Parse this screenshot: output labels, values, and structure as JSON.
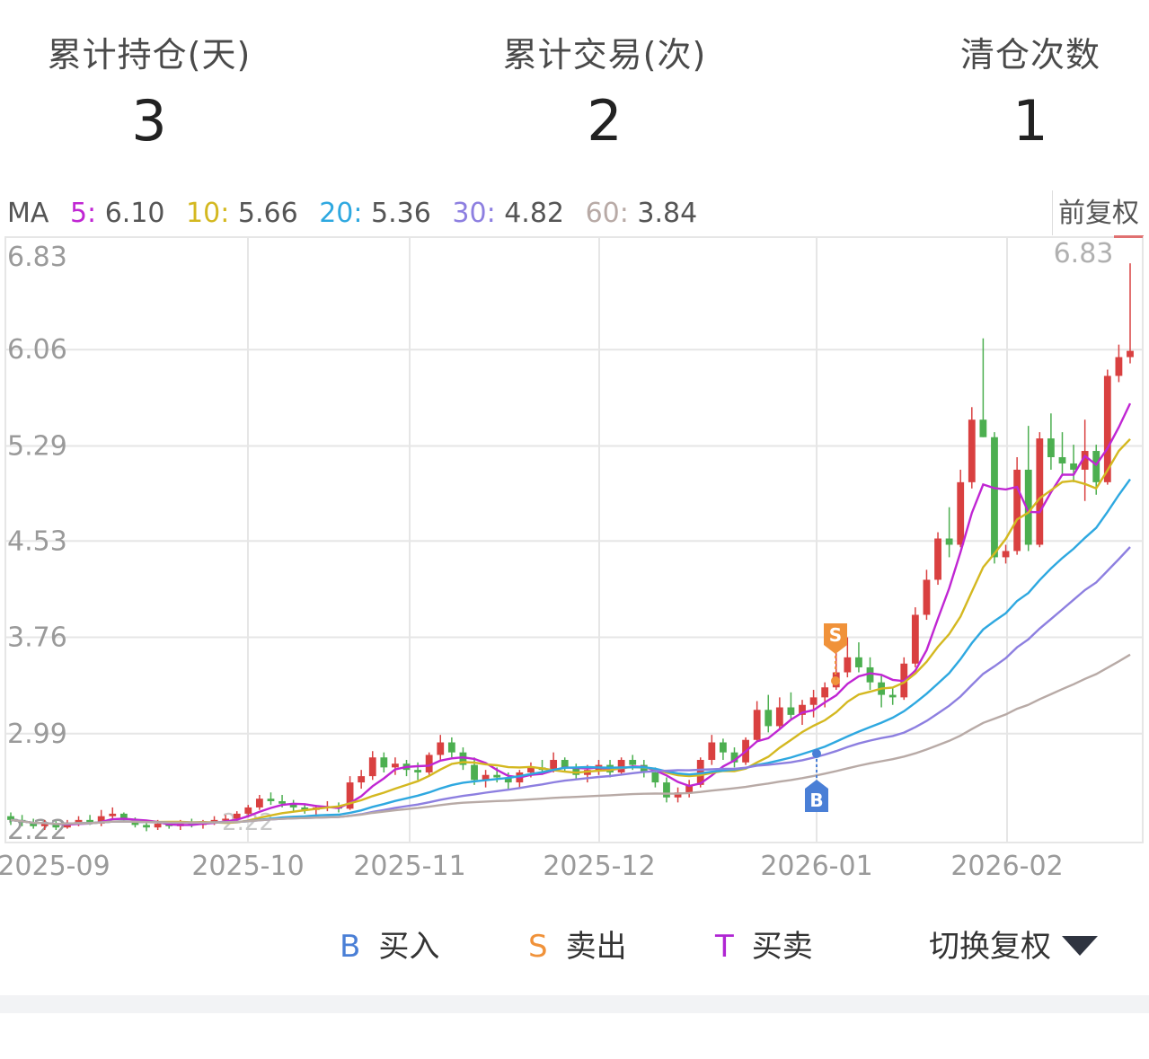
{
  "stats": [
    {
      "label": "累计持仓(天)",
      "value": "3"
    },
    {
      "label": "累计交易(次)",
      "value": "2"
    },
    {
      "label": "清仓次数",
      "value": "1"
    }
  ],
  "ma_bar": {
    "prefix": "MA",
    "items": [
      {
        "key": "5:",
        "value": "6.10",
        "color": "#c026d3"
      },
      {
        "key": "10:",
        "value": "5.66",
        "color": "#d4b820"
      },
      {
        "key": "20:",
        "value": "5.36",
        "color": "#2ea8e0"
      },
      {
        "key": "30:",
        "value": "4.82",
        "color": "#8d7fe0"
      },
      {
        "key": "60:",
        "value": "3.84",
        "color": "#b8aaa6"
      }
    ],
    "adjust_label": "前复权"
  },
  "chart_data": {
    "type": "candlestick",
    "y_ticks": [
      "6.83",
      "6.06",
      "5.29",
      "4.53",
      "3.76",
      "2.99",
      "2.22"
    ],
    "y_range": [
      2.22,
      6.83
    ],
    "x_ticks": [
      "2025-09",
      "2025-10",
      "2025-11",
      "2025-12",
      "2026-01",
      "2026-02"
    ],
    "max_label": "6.83",
    "min_label": "2.22",
    "colors": {
      "up": "#d94040",
      "down": "#4caf50",
      "grid": "#e6e6e6",
      "axis_text": "#9a9a9a"
    },
    "markers": [
      {
        "type": "S",
        "label": "S",
        "color": "#f0923a",
        "date": "2026-01-02"
      },
      {
        "type": "B",
        "label": "B",
        "color": "#4a7fd6",
        "date": "2025-12-31"
      }
    ],
    "ma_series": [
      {
        "name": "MA5",
        "color": "#c026d3"
      },
      {
        "name": "MA10",
        "color": "#d4b820"
      },
      {
        "name": "MA20",
        "color": "#2ea8e0"
      },
      {
        "name": "MA30",
        "color": "#8d7fe0"
      },
      {
        "name": "MA60",
        "color": "#b8aaa6"
      }
    ],
    "candles_ohlc": [
      [
        2.33,
        2.36,
        2.26,
        2.3
      ],
      [
        2.3,
        2.34,
        2.25,
        2.28
      ],
      [
        2.28,
        2.31,
        2.23,
        2.25
      ],
      [
        2.25,
        2.3,
        2.22,
        2.27
      ],
      [
        2.27,
        2.29,
        2.22,
        2.24
      ],
      [
        2.24,
        2.3,
        2.23,
        2.28
      ],
      [
        2.28,
        2.33,
        2.25,
        2.3
      ],
      [
        2.3,
        2.34,
        2.26,
        2.27
      ],
      [
        2.27,
        2.38,
        2.25,
        2.33
      ],
      [
        2.33,
        2.4,
        2.3,
        2.35
      ],
      [
        2.35,
        2.36,
        2.28,
        2.3
      ],
      [
        2.3,
        2.32,
        2.24,
        2.26
      ],
      [
        2.26,
        2.28,
        2.21,
        2.24
      ],
      [
        2.24,
        2.3,
        2.22,
        2.27
      ],
      [
        2.27,
        2.29,
        2.23,
        2.25
      ],
      [
        2.25,
        2.3,
        2.22,
        2.28
      ],
      [
        2.28,
        2.31,
        2.24,
        2.26
      ],
      [
        2.26,
        2.3,
        2.23,
        2.29
      ],
      [
        2.29,
        2.33,
        2.26,
        2.3
      ],
      [
        2.3,
        2.34,
        2.27,
        2.31
      ],
      [
        2.31,
        2.37,
        2.28,
        2.35
      ],
      [
        2.35,
        2.42,
        2.32,
        2.4
      ],
      [
        2.4,
        2.5,
        2.38,
        2.47
      ],
      [
        2.47,
        2.52,
        2.42,
        2.45
      ],
      [
        2.45,
        2.5,
        2.4,
        2.43
      ],
      [
        2.43,
        2.46,
        2.37,
        2.4
      ],
      [
        2.4,
        2.43,
        2.35,
        2.38
      ],
      [
        2.38,
        2.42,
        2.34,
        2.4
      ],
      [
        2.4,
        2.45,
        2.37,
        2.41
      ],
      [
        2.41,
        2.44,
        2.36,
        2.39
      ],
      [
        2.39,
        2.65,
        2.38,
        2.6
      ],
      [
        2.6,
        2.7,
        2.55,
        2.65
      ],
      [
        2.65,
        2.85,
        2.62,
        2.8
      ],
      [
        2.8,
        2.84,
        2.68,
        2.72
      ],
      [
        2.72,
        2.8,
        2.66,
        2.75
      ],
      [
        2.75,
        2.78,
        2.65,
        2.7
      ],
      [
        2.7,
        2.76,
        2.62,
        2.68
      ],
      [
        2.68,
        2.84,
        2.66,
        2.82
      ],
      [
        2.82,
        2.98,
        2.78,
        2.92
      ],
      [
        2.92,
        2.96,
        2.8,
        2.84
      ],
      [
        2.84,
        2.88,
        2.7,
        2.74
      ],
      [
        2.74,
        2.8,
        2.58,
        2.62
      ],
      [
        2.62,
        2.7,
        2.56,
        2.66
      ],
      [
        2.66,
        2.72,
        2.6,
        2.64
      ],
      [
        2.64,
        2.68,
        2.55,
        2.6
      ],
      [
        2.6,
        2.7,
        2.56,
        2.68
      ],
      [
        2.68,
        2.76,
        2.64,
        2.72
      ],
      [
        2.72,
        2.78,
        2.66,
        2.7
      ],
      [
        2.7,
        2.84,
        2.68,
        2.78
      ],
      [
        2.78,
        2.8,
        2.68,
        2.72
      ],
      [
        2.72,
        2.75,
        2.62,
        2.66
      ],
      [
        2.66,
        2.74,
        2.6,
        2.7
      ],
      [
        2.7,
        2.78,
        2.66,
        2.74
      ],
      [
        2.74,
        2.78,
        2.64,
        2.68
      ],
      [
        2.68,
        2.8,
        2.66,
        2.78
      ],
      [
        2.78,
        2.82,
        2.7,
        2.74
      ],
      [
        2.74,
        2.78,
        2.64,
        2.68
      ],
      [
        2.68,
        2.72,
        2.56,
        2.6
      ],
      [
        2.6,
        2.64,
        2.44,
        2.48
      ],
      [
        2.48,
        2.56,
        2.44,
        2.52
      ],
      [
        2.52,
        2.62,
        2.48,
        2.58
      ],
      [
        2.58,
        2.8,
        2.56,
        2.78
      ],
      [
        2.78,
        2.98,
        2.74,
        2.92
      ],
      [
        2.92,
        2.95,
        2.78,
        2.84
      ],
      [
        2.84,
        2.88,
        2.72,
        2.76
      ],
      [
        2.76,
        2.96,
        2.74,
        2.94
      ],
      [
        2.94,
        3.25,
        2.92,
        3.18
      ],
      [
        3.18,
        3.3,
        3.0,
        3.05
      ],
      [
        3.05,
        3.28,
        3.02,
        3.2
      ],
      [
        3.2,
        3.32,
        3.1,
        3.14
      ],
      [
        3.14,
        3.26,
        3.06,
        3.22
      ],
      [
        3.22,
        3.34,
        3.12,
        3.28
      ],
      [
        3.28,
        3.4,
        3.2,
        3.36
      ],
      [
        3.36,
        3.72,
        3.34,
        3.48
      ],
      [
        3.48,
        3.76,
        3.44,
        3.6
      ],
      [
        3.6,
        3.72,
        3.48,
        3.52
      ],
      [
        3.52,
        3.6,
        3.34,
        3.4
      ],
      [
        3.4,
        3.46,
        3.2,
        3.3
      ],
      [
        3.3,
        3.36,
        3.22,
        3.28
      ],
      [
        3.28,
        3.6,
        3.26,
        3.55
      ],
      [
        3.55,
        4.0,
        3.52,
        3.94
      ],
      [
        3.94,
        4.3,
        3.9,
        4.22
      ],
      [
        4.22,
        4.6,
        4.18,
        4.55
      ],
      [
        4.55,
        4.8,
        4.4,
        4.5
      ],
      [
        4.5,
        5.1,
        4.48,
        5.0
      ],
      [
        5.0,
        5.6,
        4.95,
        5.5
      ],
      [
        5.5,
        6.15,
        5.36,
        5.36
      ],
      [
        5.36,
        5.4,
        4.35,
        4.4
      ],
      [
        4.4,
        4.5,
        4.35,
        4.45
      ],
      [
        4.45,
        5.2,
        4.42,
        5.1
      ],
      [
        5.1,
        5.45,
        4.45,
        4.5
      ],
      [
        4.5,
        5.4,
        4.48,
        5.35
      ],
      [
        5.35,
        5.55,
        5.1,
        5.2
      ],
      [
        5.2,
        5.4,
        5.05,
        5.15
      ],
      [
        5.15,
        5.3,
        5.0,
        5.1
      ],
      [
        5.1,
        5.5,
        4.85,
        5.25
      ],
      [
        5.25,
        5.3,
        4.9,
        5.0
      ],
      [
        5.0,
        5.9,
        4.98,
        5.85
      ],
      [
        5.85,
        6.1,
        5.8,
        6.0
      ],
      [
        6.0,
        6.75,
        5.95,
        6.05
      ]
    ]
  },
  "legend": [
    {
      "key": "B",
      "label": "买入",
      "color": "#4a7fd6"
    },
    {
      "key": "S",
      "label": "卖出",
      "color": "#f0923a"
    },
    {
      "key": "T",
      "label": "买卖",
      "color": "#b026d3"
    }
  ],
  "switch_label": "切换复权"
}
